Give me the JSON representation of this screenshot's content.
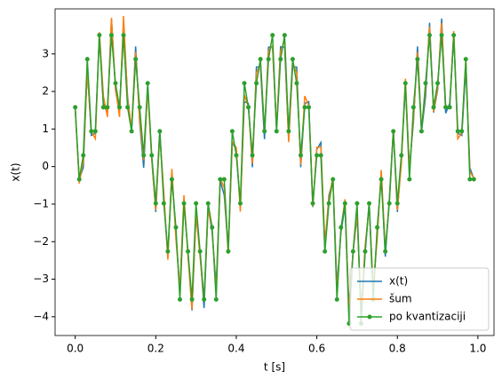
{
  "chart_data": {
    "type": "line",
    "xlabel": "t [s]",
    "ylabel": "x(t)",
    "x": [
      0,
      0.01,
      0.02,
      0.03,
      0.04,
      0.05,
      0.06,
      0.07,
      0.08,
      0.09,
      0.1,
      0.11,
      0.12,
      0.13,
      0.14,
      0.15,
      0.16,
      0.17,
      0.18,
      0.19,
      0.2,
      0.21,
      0.22,
      0.23,
      0.24,
      0.25,
      0.26,
      0.27,
      0.28,
      0.29,
      0.3,
      0.31,
      0.32,
      0.33,
      0.34,
      0.35,
      0.36,
      0.37,
      0.38,
      0.39,
      0.4,
      0.41,
      0.42,
      0.43,
      0.44,
      0.45,
      0.46,
      0.47,
      0.48,
      0.49,
      0.5,
      0.51,
      0.52,
      0.53,
      0.54,
      0.55,
      0.56,
      0.57,
      0.58,
      0.59,
      0.6,
      0.61,
      0.62,
      0.63,
      0.64,
      0.65,
      0.66,
      0.67,
      0.68,
      0.69,
      0.7,
      0.71,
      0.72,
      0.73,
      0.74,
      0.75,
      0.76,
      0.77,
      0.78,
      0.79,
      0.8,
      0.81,
      0.82,
      0.83,
      0.84,
      0.85,
      0.86,
      0.87,
      0.88,
      0.89,
      0.9,
      0.91,
      0.92,
      0.93,
      0.94,
      0.95,
      0.96,
      0.97,
      0.98,
      0.99
    ],
    "series": [
      {
        "name": "x(t)",
        "color": "#1f77b4",
        "values": [
          1.5,
          -0.33,
          -0.03,
          2.63,
          0.83,
          0.89,
          3.51,
          1.68,
          1.42,
          3.94,
          2.04,
          1.44,
          3.83,
          1.86,
          0.93,
          3.2,
          1.19,
          -0.03,
          2.16,
          0.2,
          -1.21,
          0.97,
          -0.86,
          -2.4,
          -0.16,
          -1.77,
          -3.33,
          -0.96,
          -2.29,
          -3.83,
          -1.29,
          -2.28,
          -3.77,
          -1.07,
          -1.74,
          -3.2,
          -0.38,
          -0.76,
          -2.22,
          0.64,
          0.46,
          -1.08,
          1.73,
          1.68,
          -0.02,
          2.65,
          2.66,
          0.73,
          3.18,
          3.19,
          1.0,
          3.19,
          3.18,
          0.73,
          2.66,
          2.65,
          -0.02,
          1.68,
          1.73,
          -1.08,
          0.46,
          0.64,
          -2.22,
          -0.76,
          -0.38,
          -3.2,
          -1.74,
          -1.07,
          -3.77,
          -2.28,
          -1.29,
          -3.83,
          -2.29,
          -0.96,
          -3.33,
          -1.77,
          -0.16,
          -2.4,
          -0.86,
          0.97,
          -1.21,
          0.2,
          2.16,
          -0.03,
          1.19,
          3.2,
          0.93,
          1.86,
          3.83,
          1.44,
          2.04,
          3.94,
          1.42,
          1.68,
          3.51,
          0.89,
          0.83,
          2.63,
          -0.03,
          -0.33
        ]
      },
      {
        "name": "šum",
        "color": "#ff7f0e",
        "values": [
          1.55,
          -0.45,
          0.15,
          2.55,
          0.93,
          0.74,
          3.58,
          1.88,
          1.32,
          3.96,
          2.09,
          1.32,
          4.01,
          1.78,
          1.03,
          3.05,
          1.26,
          0.17,
          2.06,
          0.22,
          -1.16,
          0.85,
          -0.68,
          -2.48,
          -0.06,
          -1.92,
          -3.26,
          -0.76,
          -2.39,
          -3.81,
          -1.24,
          -2.4,
          -3.59,
          -1.15,
          -1.64,
          -3.35,
          -0.31,
          -0.56,
          -2.32,
          0.66,
          0.51,
          -1.2,
          1.91,
          1.6,
          0.08,
          2.5,
          2.73,
          0.93,
          3.08,
          3.21,
          1.05,
          3.07,
          3.36,
          0.65,
          2.76,
          2.5,
          0.05,
          1.88,
          1.63,
          -1.06,
          0.51,
          0.52,
          -2.04,
          -0.84,
          -0.28,
          -3.35,
          -1.67,
          -0.87,
          -3.87,
          -2.26,
          -1.24,
          -3.95,
          -2.11,
          -1.04,
          -3.23,
          -1.92,
          -0.09,
          -2.2,
          -0.96,
          0.99,
          -1.16,
          0.08,
          2.34,
          -0.11,
          1.29,
          3.05,
          1.0,
          2.06,
          3.73,
          1.46,
          2.09,
          3.82,
          1.6,
          1.6,
          3.61,
          0.74,
          0.9,
          2.83,
          -0.13,
          -0.31
        ]
      },
      {
        "name": "po kvantizaciji",
        "color": "#2ca02c",
        "marker": "o",
        "values": [
          1.58,
          -0.34,
          0.3,
          2.86,
          0.94,
          0.94,
          3.5,
          1.58,
          1.58,
          3.5,
          2.22,
          1.58,
          3.5,
          1.58,
          0.94,
          2.86,
          1.58,
          0.3,
          2.22,
          0.3,
          -0.98,
          0.94,
          -0.98,
          -2.26,
          -0.34,
          -1.62,
          -3.54,
          -0.98,
          -2.26,
          -3.54,
          -0.98,
          -2.26,
          -3.54,
          -0.98,
          -1.62,
          -3.54,
          -0.34,
          -0.34,
          -2.26,
          0.94,
          0.3,
          -0.98,
          2.22,
          1.58,
          0.3,
          2.22,
          2.86,
          0.94,
          2.86,
          3.5,
          0.94,
          2.86,
          3.5,
          0.94,
          2.86,
          2.22,
          0.3,
          1.58,
          1.58,
          -0.98,
          0.3,
          0.3,
          -2.26,
          -0.98,
          -0.34,
          -3.54,
          -1.62,
          -0.98,
          -4.18,
          -2.26,
          -0.98,
          -4.18,
          -2.26,
          -0.98,
          -3.54,
          -1.62,
          -0.34,
          -2.26,
          -0.98,
          0.94,
          -0.98,
          0.3,
          2.22,
          -0.34,
          1.58,
          2.86,
          0.94,
          2.22,
          3.5,
          1.58,
          2.22,
          3.5,
          1.58,
          1.58,
          3.5,
          0.94,
          0.94,
          2.86,
          -0.34,
          -0.34
        ]
      }
    ],
    "xlim": [
      -0.05,
      1.04
    ],
    "ylim": [
      -4.5,
      4.2
    ],
    "xticks": [
      {
        "value": 0,
        "label": "0.0"
      },
      0.2,
      0.4,
      0.6,
      0.8,
      {
        "value": 1,
        "label": "1.0"
      }
    ],
    "yticks": [
      {
        "value": -4,
        "label": "−4"
      },
      {
        "value": -3,
        "label": "−3"
      },
      {
        "value": -2,
        "label": "−2"
      },
      {
        "value": -1,
        "label": "−1"
      },
      0,
      1,
      2,
      3
    ],
    "legend": "lower right",
    "grid": false
  }
}
